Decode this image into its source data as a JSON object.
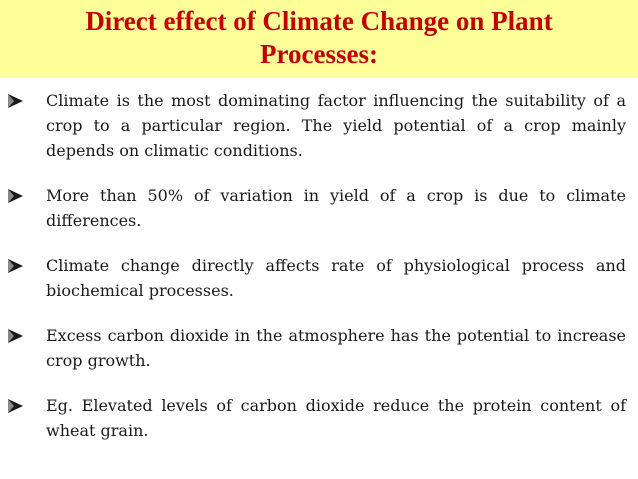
{
  "slide": {
    "title_line1": "Direct effect of Climate Change on Plant",
    "title_line2": "Processes:",
    "bullets": [
      "Climate is the most dominating factor influencing the suitability of a crop to a particular region. The yield potential of a crop mainly depends on climatic conditions.",
      "More than 50% of variation in yield of a crop is due to climate differences.",
      "Climate change directly affects rate of physiological process and biochemical processes.",
      "Excess carbon dioxide in the atmosphere has the potential to increase crop growth.",
      "Eg. Elevated levels of carbon dioxide reduce the protein content of wheat grain."
    ]
  },
  "colors": {
    "title_band": "#ffff99",
    "title_text": "#c00000",
    "body_text": "#1a1a1a"
  },
  "icons": {
    "bullet_marker": "arrowhead-bullet-icon"
  }
}
